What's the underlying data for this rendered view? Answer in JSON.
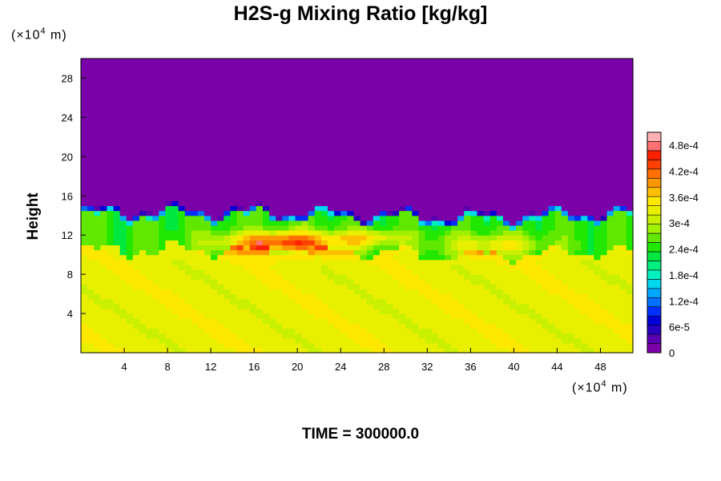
{
  "chart_data": {
    "type": "heatmap",
    "title": "H2S-g Mixing Ratio [kg/kg]",
    "ylabel": "Height",
    "x_unit": "(×10",
    "y_unit": "(×10",
    "unit_exponent": "4",
    "unit_suffix": " m)",
    "xlim": [
      0,
      51
    ],
    "ylim": [
      0,
      30
    ],
    "x_ticks": [
      4,
      8,
      12,
      16,
      20,
      24,
      28,
      32,
      36,
      40,
      44,
      48
    ],
    "y_ticks": [
      4,
      8,
      12,
      16,
      20,
      24,
      28
    ],
    "colorbar": {
      "range": [
        0,
        0.00051
      ],
      "labels": [
        "0",
        "6e-5",
        "1.2e-4",
        "1.8e-4",
        "2.4e-4",
        "3e-4",
        "3.6e-4",
        "4.2e-4",
        "4.8e-4"
      ],
      "label_values": [
        0,
        6e-05,
        0.00012,
        0.00018,
        0.00024,
        0.0003,
        0.00036,
        0.00042,
        0.00048
      ],
      "colors": [
        "#7a00a8",
        "#5a00b0",
        "#2a00c0",
        "#0000d8",
        "#0030ff",
        "#0070ff",
        "#00a8ff",
        "#00d8f0",
        "#00f0c0",
        "#00f080",
        "#00e840",
        "#20e800",
        "#60e800",
        "#a0f000",
        "#c8f000",
        "#e8f000",
        "#ffe800",
        "#ffc000",
        "#ff9800",
        "#ff7000",
        "#ff4000",
        "#ff2000",
        "#ff7070",
        "#ffb0b0"
      ]
    },
    "field": {
      "top_value": 0,
      "interface_height": 14,
      "bottom_value": 0.00033,
      "plume_max": 0.00051
    }
  },
  "time_label": "TIME = 300000.0"
}
